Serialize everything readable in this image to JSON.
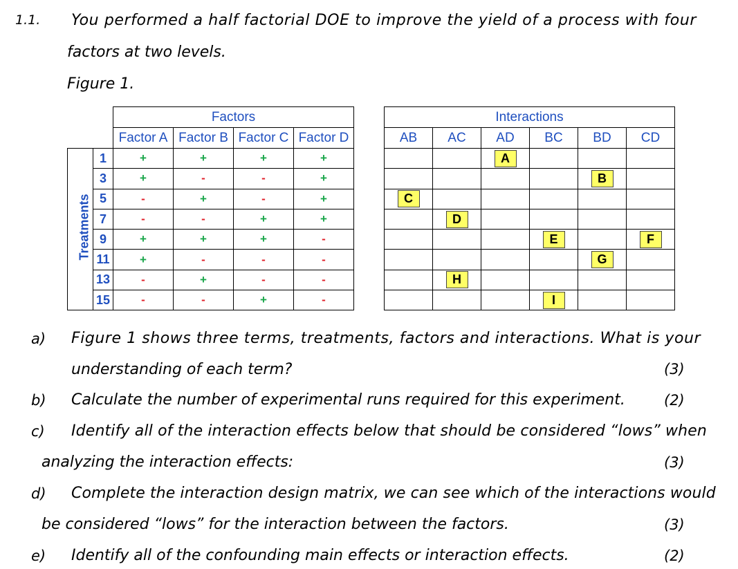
{
  "question": {
    "number": "1.1.",
    "line1": "You performed a half factorial DOE to improve the yield of a process with four",
    "line2": "factors at two levels.",
    "figure_label": "Figure 1."
  },
  "factors_table": {
    "group_title": "Factors",
    "columns": [
      "Factor A",
      "Factor B",
      "Factor C",
      "Factor D"
    ],
    "row_label": "Treatments",
    "rows": [
      {
        "treatment": "1",
        "signs": [
          "+",
          "+",
          "+",
          "+"
        ]
      },
      {
        "treatment": "3",
        "signs": [
          "+",
          "-",
          "-",
          "+"
        ]
      },
      {
        "treatment": "5",
        "signs": [
          "-",
          "+",
          "-",
          "+"
        ]
      },
      {
        "treatment": "7",
        "signs": [
          "-",
          "-",
          "+",
          "+"
        ]
      },
      {
        "treatment": "9",
        "signs": [
          "+",
          "+",
          "+",
          "-"
        ]
      },
      {
        "treatment": "11",
        "signs": [
          "+",
          "-",
          "-",
          "-"
        ]
      },
      {
        "treatment": "13",
        "signs": [
          "-",
          "+",
          "-",
          "-"
        ]
      },
      {
        "treatment": "15",
        "signs": [
          "-",
          "-",
          "+",
          "-"
        ]
      }
    ]
  },
  "interactions_table": {
    "group_title": "Interactions",
    "columns": [
      "AB",
      "AC",
      "AD",
      "BC",
      "BD",
      "CD"
    ],
    "rows": [
      [
        "",
        "",
        "A",
        "",
        "",
        ""
      ],
      [
        "",
        "",
        "",
        "",
        "B",
        ""
      ],
      [
        "C",
        "",
        "",
        "",
        "",
        ""
      ],
      [
        "",
        "D",
        "",
        "",
        "",
        ""
      ],
      [
        "",
        "",
        "",
        "E",
        "",
        "F"
      ],
      [
        "",
        "",
        "",
        "",
        "G",
        ""
      ],
      [
        "",
        "H",
        "",
        "",
        "",
        ""
      ],
      [
        "",
        "",
        "",
        "I",
        "",
        ""
      ]
    ]
  },
  "subquestions": {
    "a": {
      "letter": "a)",
      "line1": "Figure 1 shows three terms, treatments, factors and interactions. What is your",
      "line2": "understanding of each term?",
      "marks": "(3)"
    },
    "b": {
      "letter": "b)",
      "line1": "Calculate the number of experimental runs required for this experiment.",
      "marks": "(2)"
    },
    "c": {
      "letter": "c)",
      "line1": "Identify all of the interaction effects below that should be considered “lows” when",
      "line2": "analyzing the interaction effects:",
      "marks": "(3)"
    },
    "d": {
      "letter": "d)",
      "line1": "Complete the interaction design matrix, we can see which of the interactions would",
      "line2": "be considered “lows” for the interaction between the factors.",
      "marks": "(3)"
    },
    "e": {
      "letter": "e)",
      "line1": "Identify all of the confounding main effects or interaction effects.",
      "marks": "(2)"
    }
  }
}
